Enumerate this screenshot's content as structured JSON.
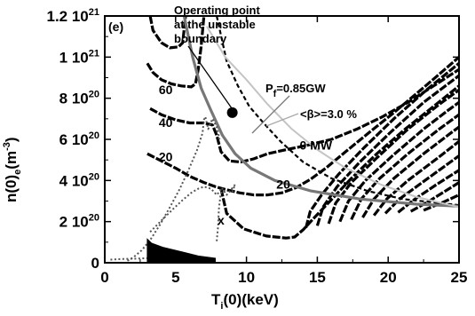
{
  "chart_data": {
    "type": "line",
    "panel_label": "(e)",
    "xlabel": {
      "main": "T",
      "sub": "i",
      "rest": "(0)(keV)"
    },
    "ylabel": {
      "main": "n(0)",
      "sub": "e",
      "rest": "(m",
      "sup": "-3",
      "close": ")"
    },
    "xlim": [
      0,
      25
    ],
    "ylim": [
      0,
      1.2e+21
    ],
    "x_ticks": [
      {
        "value": 0,
        "label": "0"
      },
      {
        "value": 5,
        "label": "5"
      },
      {
        "value": 10,
        "label": "10"
      },
      {
        "value": 15,
        "label": "15"
      },
      {
        "value": 20,
        "label": "20"
      },
      {
        "value": 25,
        "label": "25"
      }
    ],
    "y_ticks": [
      {
        "value": 0,
        "mant": "0",
        "exp": ""
      },
      {
        "value": 2e+20,
        "mant": "2 10",
        "exp": "20"
      },
      {
        "value": 4e+20,
        "mant": "4 10",
        "exp": "20"
      },
      {
        "value": 6e+20,
        "mant": "6 10",
        "exp": "20"
      },
      {
        "value": 8e+20,
        "mant": "8 10",
        "exp": "20"
      },
      {
        "value": 1e+21,
        "mant": "1 10",
        "exp": "21"
      },
      {
        "value": 1.2e+21,
        "mant": "1.2 10",
        "exp": "21"
      }
    ],
    "contour_labels": [
      {
        "text": "60",
        "x": 4.3,
        "y": 8.2e+20
      },
      {
        "text": "40",
        "x": 4.3,
        "y": 6.6e+20
      },
      {
        "text": "20",
        "x": 4.3,
        "y": 4.95e+20
      },
      {
        "text": "0 MW",
        "x": 14.9,
        "y": 5.5e+20
      },
      {
        "text": "20",
        "x": 12.6,
        "y": 3.6e+20
      },
      {
        "text": "x",
        "x": 8.2,
        "y": 1.85e+20
      }
    ],
    "annotations": {
      "operating": [
        "Operating point",
        "at the unstable",
        "boundary"
      ],
      "pf": {
        "prefix": "P",
        "sub": "f",
        "rest": "=0.85GW"
      },
      "beta": "<β>=3.0 %"
    },
    "operating_point": {
      "x": 9.0,
      "y": 7.3e+20
    },
    "series": [
      {
        "style": "contour",
        "points": [
          [
            3.2,
            1.2e+21
          ],
          [
            3.4,
            1.13e+21
          ],
          [
            4.0,
            1.07e+21
          ],
          [
            4.6,
            1.045e+21
          ],
          [
            5.2,
            1.05e+21
          ],
          [
            5.5,
            1.07e+21
          ],
          [
            5.7,
            1.2e+21
          ]
        ]
      },
      {
        "style": "contour",
        "points": [
          [
            3.0,
            9.7e+20
          ],
          [
            3.4,
            9.25e+20
          ],
          [
            4.0,
            8.9e+20
          ],
          [
            4.7,
            8.7e+20
          ],
          [
            5.4,
            8.6e+20
          ],
          [
            6.1,
            8.55e+20
          ],
          [
            6.4,
            8.7e+20
          ],
          [
            6.6,
            9.4e+20
          ],
          [
            6.8,
            1.05e+21
          ],
          [
            7.0,
            1.2e+21
          ]
        ]
      },
      {
        "style": "contour",
        "points": [
          [
            3.2,
            7.5e+20
          ],
          [
            4.0,
            7.2e+20
          ],
          [
            5.0,
            6.95e+20
          ],
          [
            6.0,
            6.8e+20
          ],
          [
            7.0,
            6.8e+20
          ],
          [
            7.6,
            6.7e+20
          ],
          [
            7.9,
            6.2e+20
          ],
          [
            8.2,
            5.4e+20
          ],
          [
            8.8,
            4.95e+20
          ],
          [
            9.6,
            4.9e+20
          ],
          [
            10.5,
            5.05e+20
          ],
          [
            11.5,
            5.3e+20
          ],
          [
            12.8,
            5.5e+20
          ],
          [
            14.2,
            5.7e+20
          ],
          [
            16.0,
            6e+20
          ],
          [
            17.8,
            6.5e+20
          ],
          [
            19.6,
            7.1e+20
          ],
          [
            21.4,
            7.8e+20
          ],
          [
            23.2,
            8.6e+20
          ],
          [
            25.0,
            9.4e+20
          ]
        ]
      },
      {
        "style": "contour",
        "points": [
          [
            3.0,
            5.3e+20
          ],
          [
            4.0,
            4.95e+20
          ],
          [
            5.0,
            4.6e+20
          ],
          [
            6.0,
            4.2e+20
          ],
          [
            7.0,
            3.9e+20
          ],
          [
            7.8,
            3.7e+20
          ],
          [
            8.6,
            3.55e+20
          ],
          [
            9.5,
            3.4e+20
          ],
          [
            10.5,
            3.3e+20
          ],
          [
            11.5,
            3.3e+20
          ],
          [
            12.5,
            3.4e+20
          ],
          [
            13.5,
            3.65e+20
          ],
          [
            14.5,
            4.05e+20
          ],
          [
            15.6,
            4.6e+20
          ],
          [
            17.0,
            5.4e+20
          ],
          [
            18.6,
            6.3e+20
          ],
          [
            20.4,
            7.3e+20
          ],
          [
            22.3,
            8.4e+20
          ],
          [
            24.0,
            9.4e+20
          ],
          [
            25.0,
            1e+21
          ]
        ]
      },
      {
        "style": "contour",
        "points": [
          [
            8.2,
            3.6e+20
          ],
          [
            8.6,
            2.4e+20
          ],
          [
            9.8,
            1.65e+20
          ],
          [
            11.4,
            1.3e+20
          ],
          [
            12.8,
            1.2e+20
          ],
          [
            13.4,
            1.25e+20
          ],
          [
            14.0,
            1.6e+20
          ],
          [
            14.8,
            2.2e+20
          ],
          [
            15.9,
            3e+20
          ],
          [
            17.4,
            4.1e+20
          ],
          [
            19.2,
            5.3e+20
          ],
          [
            21.2,
            6.5e+20
          ],
          [
            23.2,
            7.6e+20
          ],
          [
            25.0,
            8.6e+20
          ]
        ]
      },
      {
        "style": "contour",
        "points": [
          [
            14.2,
            1.7e+20
          ],
          [
            14.5,
            2.5e+20
          ],
          [
            15.3,
            3.3e+20
          ],
          [
            16.5,
            4.3e+20
          ],
          [
            18.3,
            5.6e+20
          ],
          [
            20.4,
            7e+20
          ],
          [
            22.7,
            8.4e+20
          ],
          [
            25.0,
            9.7e+20
          ]
        ]
      },
      {
        "style": "contour",
        "points": [
          [
            15.0,
            1.8e+20
          ],
          [
            15.4,
            2.7e+20
          ],
          [
            16.4,
            3.7e+20
          ],
          [
            18.0,
            4.9e+20
          ],
          [
            20.1,
            6.3e+20
          ],
          [
            22.5,
            7.8e+20
          ],
          [
            25.0,
            9.1e+20
          ]
        ]
      },
      {
        "style": "contour",
        "points": [
          [
            15.8,
            1.9e+20
          ],
          [
            16.3,
            2.9e+20
          ],
          [
            17.4,
            3.9e+20
          ],
          [
            19.2,
            5.1e+20
          ],
          [
            21.4,
            6.5e+20
          ],
          [
            23.6,
            7.7e+20
          ],
          [
            25.0,
            8.4e+20
          ]
        ]
      },
      {
        "style": "contour",
        "points": [
          [
            16.6,
            2e+20
          ],
          [
            17.2,
            3e+20
          ],
          [
            18.4,
            4e+20
          ],
          [
            20.3,
            5.2e+20
          ],
          [
            22.5,
            6.5e+20
          ],
          [
            24.2,
            7.4e+20
          ],
          [
            25.0,
            7.8e+20
          ]
        ]
      },
      {
        "style": "contour",
        "points": [
          [
            17.4,
            2.1e+20
          ],
          [
            18.1,
            3.1e+20
          ],
          [
            19.4,
            4.1e+20
          ],
          [
            21.4,
            5.3e+20
          ],
          [
            23.6,
            6.5e+20
          ],
          [
            25.0,
            7.2e+20
          ]
        ]
      },
      {
        "style": "contour",
        "points": [
          [
            18.2,
            2.2e+20
          ],
          [
            19.0,
            3.1e+20
          ],
          [
            20.4,
            4.1e+20
          ],
          [
            22.5,
            5.3e+20
          ],
          [
            24.6,
            6.4e+20
          ],
          [
            25.0,
            6.6e+20
          ]
        ]
      },
      {
        "style": "contour",
        "points": [
          [
            19.0,
            2.3e+20
          ],
          [
            19.9,
            3.1e+20
          ],
          [
            21.4,
            4e+20
          ],
          [
            23.5,
            5.1e+20
          ],
          [
            25.0,
            5.9e+20
          ]
        ]
      },
      {
        "style": "contour",
        "points": [
          [
            19.8,
            2.4e+20
          ],
          [
            20.8,
            3.1e+20
          ],
          [
            22.4,
            3.9e+20
          ],
          [
            24.4,
            4.9e+20
          ],
          [
            25.0,
            5.2e+20
          ]
        ]
      },
      {
        "style": "contour",
        "points": [
          [
            20.7,
            2.45e+20
          ],
          [
            21.8,
            3.05e+20
          ],
          [
            23.4,
            3.8e+20
          ],
          [
            25.0,
            4.5e+20
          ]
        ]
      },
      {
        "style": "contour",
        "points": [
          [
            21.6,
            2.5e+20
          ],
          [
            22.9,
            3e+20
          ],
          [
            24.3,
            3.6e+20
          ],
          [
            25.0,
            3.9e+20
          ]
        ]
      },
      {
        "style": "contour",
        "points": [
          [
            22.5,
            2.55e+20
          ],
          [
            23.9,
            2.95e+20
          ],
          [
            25.0,
            3.3e+20
          ]
        ]
      },
      {
        "style": "ignition",
        "points": [
          [
            7.9,
            1.2e+21
          ],
          [
            8.6,
            9.8e+20
          ],
          [
            9.4,
            8.6e+20
          ],
          [
            10.2,
            7.6e+20
          ],
          [
            11.2,
            6.8e+20
          ],
          [
            12.4,
            5.9e+20
          ],
          [
            14.0,
            4.9e+20
          ],
          [
            16.0,
            4.1e+20
          ],
          [
            18.5,
            3.5e+20
          ],
          [
            21.0,
            3.1e+20
          ],
          [
            25.0,
            2.8e+20
          ]
        ]
      },
      {
        "style": "power",
        "points": [
          [
            5.6,
            1.2e+21
          ],
          [
            6.2,
            1e+21
          ],
          [
            6.8,
            8.5e+20
          ],
          [
            7.5,
            7.4e+20
          ],
          [
            8.3,
            6.2e+20
          ],
          [
            9.2,
            5.3e+20
          ],
          [
            10.3,
            4.6e+20
          ],
          [
            12.0,
            4e+20
          ],
          [
            14.5,
            3.5e+20
          ],
          [
            18.0,
            3.1e+20
          ],
          [
            22.0,
            2.85e+20
          ],
          [
            25.0,
            2.75e+20
          ]
        ]
      },
      {
        "style": "beta",
        "points": [
          [
            7.2,
            1.15e+21
          ],
          [
            8.5,
            1e+21
          ],
          [
            10.0,
            8.9e+20
          ],
          [
            11.5,
            7.7e+20
          ],
          [
            13.2,
            6.5e+20
          ],
          [
            15.0,
            5.5e+20
          ],
          [
            17.0,
            4.6e+20
          ],
          [
            19.5,
            3.8e+20
          ],
          [
            22.0,
            3.2e+20
          ],
          [
            25.0,
            2.7e+20
          ]
        ]
      },
      {
        "style": "trajectory",
        "points": [
          [
            1.6,
            1e+19
          ],
          [
            2.0,
            2.5e+19
          ],
          [
            2.6,
            6e+19
          ],
          [
            3.2,
            1.1e+20
          ],
          [
            3.9,
            1.85e+20
          ],
          [
            4.6,
            2.7e+20
          ],
          [
            5.3,
            3.6e+20
          ],
          [
            5.9,
            4.5e+20
          ],
          [
            6.5,
            5.45e+20
          ],
          [
            6.9,
            6.3e+20
          ],
          [
            7.0,
            6.95e+20
          ],
          [
            7.1,
            7.1e+20
          ],
          [
            7.3,
            6.5e+20
          ],
          [
            7.6,
            7e+20
          ],
          [
            7.9,
            6.6e+20
          ],
          [
            8.1,
            6e+20
          ]
        ]
      },
      {
        "style": "trajectory",
        "points": [
          [
            3.2,
            1.5e+20
          ],
          [
            4.0,
            2.05e+20
          ],
          [
            4.8,
            2.6e+20
          ],
          [
            5.5,
            3.05e+20
          ],
          [
            6.1,
            3.4e+20
          ],
          [
            6.6,
            3.6e+20
          ],
          [
            7.0,
            3.7e+20
          ],
          [
            7.5,
            3.6e+20
          ],
          [
            7.9,
            3.3e+20
          ],
          [
            8.2,
            3.55e+20
          ],
          [
            8.6,
            3.45e+20
          ]
        ]
      },
      {
        "style": "trajectory",
        "points": [
          [
            7.9,
            1.05e+20
          ],
          [
            8.0,
            1.8e+20
          ],
          [
            8.05,
            2.6e+20
          ],
          [
            8.15,
            3.2e+20
          ],
          [
            8.3,
            3.6e+20
          ],
          [
            8.6,
            3.3e+20
          ],
          [
            9.2,
            3.8e+20
          ],
          [
            9.0,
            3.45e+20
          ]
        ]
      },
      {
        "style": "trajectory",
        "points": [
          [
            0.4,
            1.5e+19
          ],
          [
            1.2,
            1.8e+19
          ],
          [
            2.2,
            2e+19
          ],
          [
            3.2,
            2.3e+19
          ],
          [
            4.5,
            2.8e+19
          ]
        ]
      }
    ],
    "fill_blob": {
      "points": [
        [
          3.0,
          1.15e+20
        ],
        [
          3.3,
          9.5e+19
        ],
        [
          4.1,
          7.5e+19
        ],
        [
          5.5,
          5.2e+19
        ],
        [
          6.6,
          3.3e+19
        ],
        [
          7.8,
          2.2e+19
        ],
        [
          7.8,
          5e+18
        ],
        [
          3.0,
          5e+18
        ]
      ]
    }
  }
}
